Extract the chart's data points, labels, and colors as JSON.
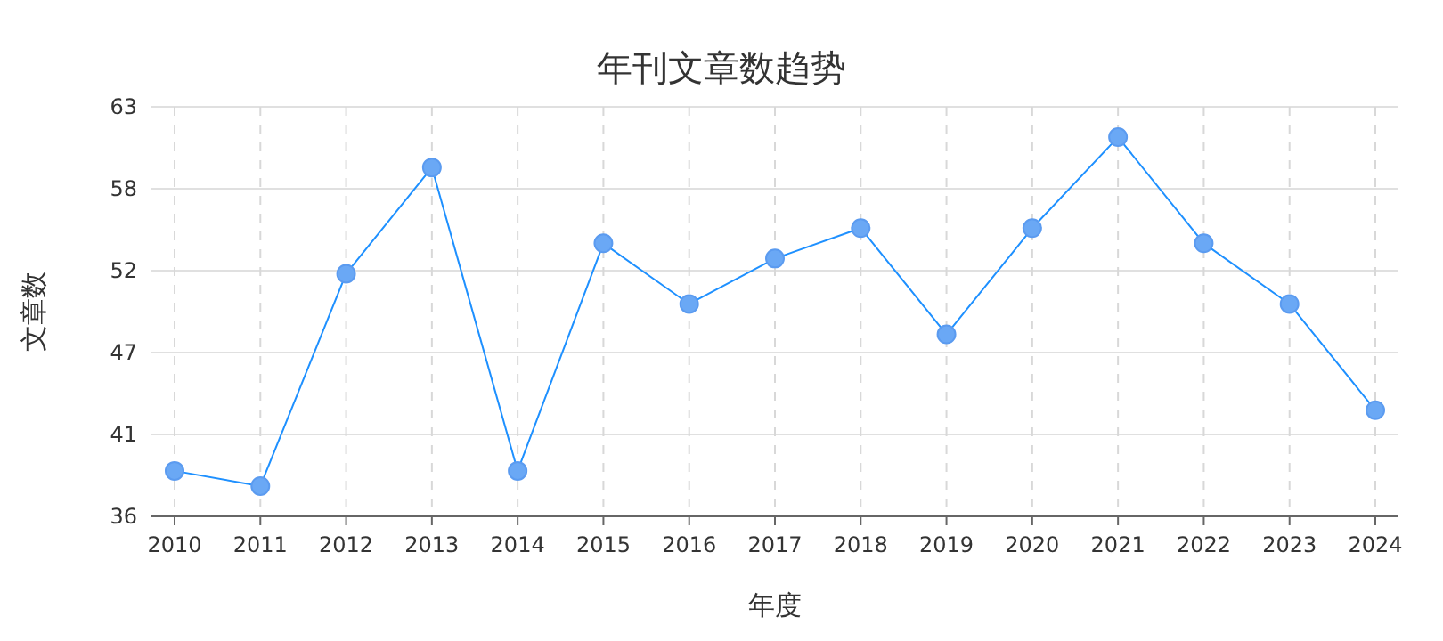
{
  "chart_data": {
    "type": "line",
    "title": "年刊文章数趋势",
    "xlabel": "年度",
    "ylabel": "文章数",
    "categories": [
      "2010",
      "2011",
      "2012",
      "2013",
      "2014",
      "2015",
      "2016",
      "2017",
      "2018",
      "2019",
      "2020",
      "2021",
      "2022",
      "2023",
      "2024"
    ],
    "series": [
      {
        "color": "#1e90ff",
        "values": [
          39,
          38,
          52,
          59,
          39,
          54,
          50,
          53,
          55,
          48,
          55,
          61,
          54,
          50,
          43
        ]
      }
    ],
    "ylim": [
      36,
      63
    ],
    "yticks": [
      {
        "value": 36,
        "label": "36"
      },
      {
        "value": 41.4,
        "label": "41"
      },
      {
        "value": 46.8,
        "label": "47"
      },
      {
        "value": 52.2,
        "label": "52"
      },
      {
        "value": 57.6,
        "label": "58"
      },
      {
        "value": 63,
        "label": "63"
      }
    ],
    "grid": true,
    "marker": "circle",
    "line_style": "solid"
  }
}
